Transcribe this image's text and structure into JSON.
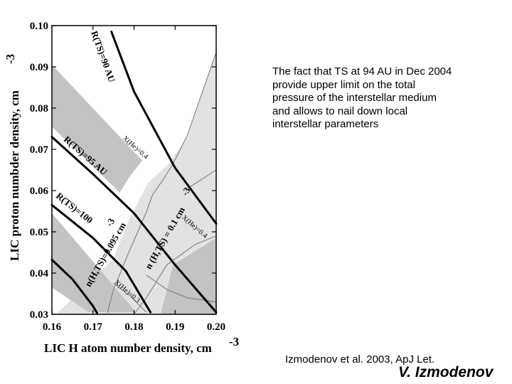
{
  "chart_data": {
    "type": "line",
    "xlabel": "LIC H atom number density, cm",
    "xlabel_exponent": "-3",
    "ylabel": "LIC proton numbder density, cm",
    "ylabel_exponent": "-3",
    "xlim": [
      0.16,
      0.2
    ],
    "ylim": [
      0.03,
      0.1
    ],
    "x_ticks": [
      "0.16",
      "0.17",
      "0.18",
      "0.19",
      "0.20"
    ],
    "y_ticks": [
      "0.03",
      "0.04",
      "0.05",
      "0.06",
      "0.07",
      "0.08",
      "0.09",
      "0.10"
    ],
    "grid": false,
    "regions": [
      {
        "name": "light",
        "color": "#e2e2e2",
        "points": [
          [
            0.161,
            0.03
          ],
          [
            0.175,
            0.0435
          ],
          [
            0.179,
            0.0535
          ],
          [
            0.1835,
            0.062
          ],
          [
            0.188,
            0.066
          ],
          [
            0.193,
            0.073
          ],
          [
            0.2,
            0.0935
          ],
          [
            0.2,
            0.03
          ]
        ]
      },
      {
        "name": "dark-upper",
        "color": "#c3c3c3",
        "points": [
          [
            0.16,
            0.0905
          ],
          [
            0.182,
            0.0673
          ],
          [
            0.179,
            0.0635
          ],
          [
            0.1765,
            0.0595
          ],
          [
            0.16,
            0.0755
          ]
        ]
      },
      {
        "name": "dark-lower",
        "color": "#c3c3c3",
        "points": [
          [
            0.16,
            0.0545
          ],
          [
            0.1805,
            0.0305
          ],
          [
            0.169,
            0.0305
          ],
          [
            0.16,
            0.0365
          ]
        ]
      },
      {
        "name": "dark-corner",
        "color": "#c3c3c3",
        "points": [
          [
            0.2,
            0.03
          ],
          [
            0.2,
            0.0485
          ],
          [
            0.1895,
            0.042
          ],
          [
            0.1865,
            0.03
          ]
        ]
      }
    ],
    "curves": [
      {
        "label": "R(TS)=90 AU",
        "points": [
          [
            0.1745,
            0.0985
          ],
          [
            0.18,
            0.084
          ],
          [
            0.19,
            0.0655
          ],
          [
            0.2,
            0.052
          ]
        ]
      },
      {
        "label": "R(TS)=95 AU",
        "points": [
          [
            0.16,
            0.073
          ],
          [
            0.17,
            0.064
          ],
          [
            0.18,
            0.0545
          ],
          [
            0.19,
            0.042
          ],
          [
            0.2,
            0.0305
          ]
        ]
      },
      {
        "label": "R(TS)=100",
        "points": [
          [
            0.16,
            0.0565
          ],
          [
            0.17,
            0.0485
          ],
          [
            0.178,
            0.0405
          ],
          [
            0.184,
            0.0305
          ]
        ]
      },
      {
        "label": "",
        "points": [
          [
            0.16,
            0.0432
          ],
          [
            0.165,
            0.0385
          ],
          [
            0.17,
            0.032
          ],
          [
            0.171,
            0.0303
          ]
        ]
      }
    ],
    "thin_curves": [
      {
        "points": [
          [
            0.1735,
            0.0303
          ],
          [
            0.175,
            0.036
          ],
          [
            0.1785,
            0.0445
          ],
          [
            0.183,
            0.0548
          ],
          [
            0.1845,
            0.059
          ],
          [
            0.187,
            0.0625
          ],
          [
            0.1895,
            0.0665
          ],
          [
            0.193,
            0.0735
          ],
          [
            0.2,
            0.0935
          ]
        ]
      },
      {
        "points": [
          [
            0.175,
            0.0375
          ],
          [
            0.179,
            0.0345
          ],
          [
            0.183,
            0.0305
          ]
        ]
      },
      {
        "points": [
          [
            0.183,
            0.0395
          ],
          [
            0.188,
            0.036
          ],
          [
            0.193,
            0.034
          ],
          [
            0.2,
            0.033
          ]
        ]
      },
      {
        "points": [
          [
            0.18,
            0.03
          ],
          [
            0.183,
            0.034
          ],
          [
            0.188,
            0.042
          ],
          [
            0.195,
            0.047
          ],
          [
            0.2,
            0.049
          ]
        ]
      },
      {
        "points": [
          [
            0.193,
            0.0605
          ],
          [
            0.2,
            0.065
          ]
        ]
      }
    ],
    "annotations": [
      {
        "text": "R(TS)=90 AU",
        "at": [
          0.1725,
          0.0925
        ],
        "angle": 70,
        "kind": "curve"
      },
      {
        "text": "R(TS)=95 AU",
        "at": [
          0.1682,
          0.0685
        ],
        "angle": 41,
        "kind": "curve"
      },
      {
        "text": "R(TS)=100",
        "at": [
          0.1655,
          0.0558
        ],
        "angle": 38,
        "kind": "curve"
      },
      {
        "text": "n(H,TS)=0.095 cm",
        "at": [
          0.173,
          0.0445
        ],
        "angle": -60,
        "kind": "curve"
      },
      {
        "text": "n (H,TS) = 0.1 cm",
        "at": [
          0.1875,
          0.0485
        ],
        "angle": -60,
        "kind": "curve"
      },
      {
        "text": "-3",
        "at": [
          0.1742,
          0.0523
        ],
        "angle": -60,
        "kind": "curve"
      },
      {
        "text": "-3",
        "at": [
          0.1926,
          0.0598
        ],
        "angle": -60,
        "kind": "curve"
      },
      {
        "text": "X(He)=0.4",
        "at": [
          0.1803,
          0.0704
        ],
        "angle": 41,
        "kind": "xhe"
      },
      {
        "text": "X(He)=0.4",
        "at": [
          0.1947,
          0.0512
        ],
        "angle": 41,
        "kind": "xhe"
      },
      {
        "text": "X(He)=0.3",
        "at": [
          0.1783,
          0.0355
        ],
        "angle": 41,
        "kind": "xhe"
      }
    ]
  },
  "note_lines": [
    "The fact that TS at 94 AU in Dec 2004",
    "provide upper limit on the total",
    "pressure  of the interstellar medium",
    "and allows to nail down local",
    "interstellar parameters"
  ],
  "citation": "Izmodenov et al. 2003, ApJ Let.",
  "author": "V. Izmodenov"
}
